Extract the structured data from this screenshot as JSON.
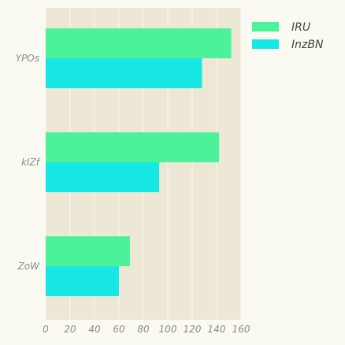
{
  "chart_data": {
    "type": "bar",
    "orientation": "horizontal",
    "title": "",
    "xlabel": "",
    "ylabel": "",
    "categories": [
      "YPOs",
      "kIZf",
      "ZoW"
    ],
    "series": [
      {
        "name": "IRU",
        "values": [
          152,
          142,
          69
        ],
        "color": "#4cf29a"
      },
      {
        "name": "InzBN",
        "values": [
          128,
          93,
          60
        ],
        "color": "#17e8e4"
      }
    ],
    "xlim": [
      0,
      160
    ],
    "xticks": [
      0,
      20,
      40,
      60,
      80,
      100,
      120,
      140,
      160
    ],
    "grid": true,
    "legend_position": "top-right",
    "colors": {
      "plot_background": "#ede7d5",
      "grid": "#faf7ee",
      "page_background": "#fafaf2"
    }
  }
}
